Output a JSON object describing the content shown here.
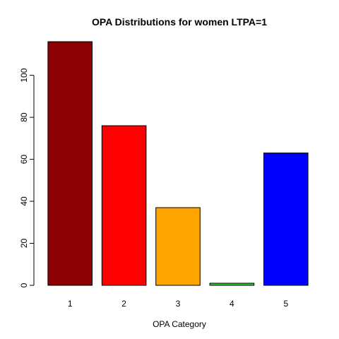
{
  "chart_data": {
    "type": "bar",
    "title": "OPA Distributions for women LTPA=1",
    "xlabel": "OPA Category",
    "ylabel": "",
    "categories": [
      "1",
      "2",
      "3",
      "4",
      "5"
    ],
    "values": [
      116,
      76,
      37,
      1,
      63
    ],
    "colors": [
      "#8b0000",
      "#ff0000",
      "#ffa500",
      "#32cd32",
      "#0000ff"
    ],
    "ylim": [
      0,
      116
    ],
    "yticks": [
      0,
      20,
      40,
      60,
      80,
      100
    ],
    "grid": false
  }
}
